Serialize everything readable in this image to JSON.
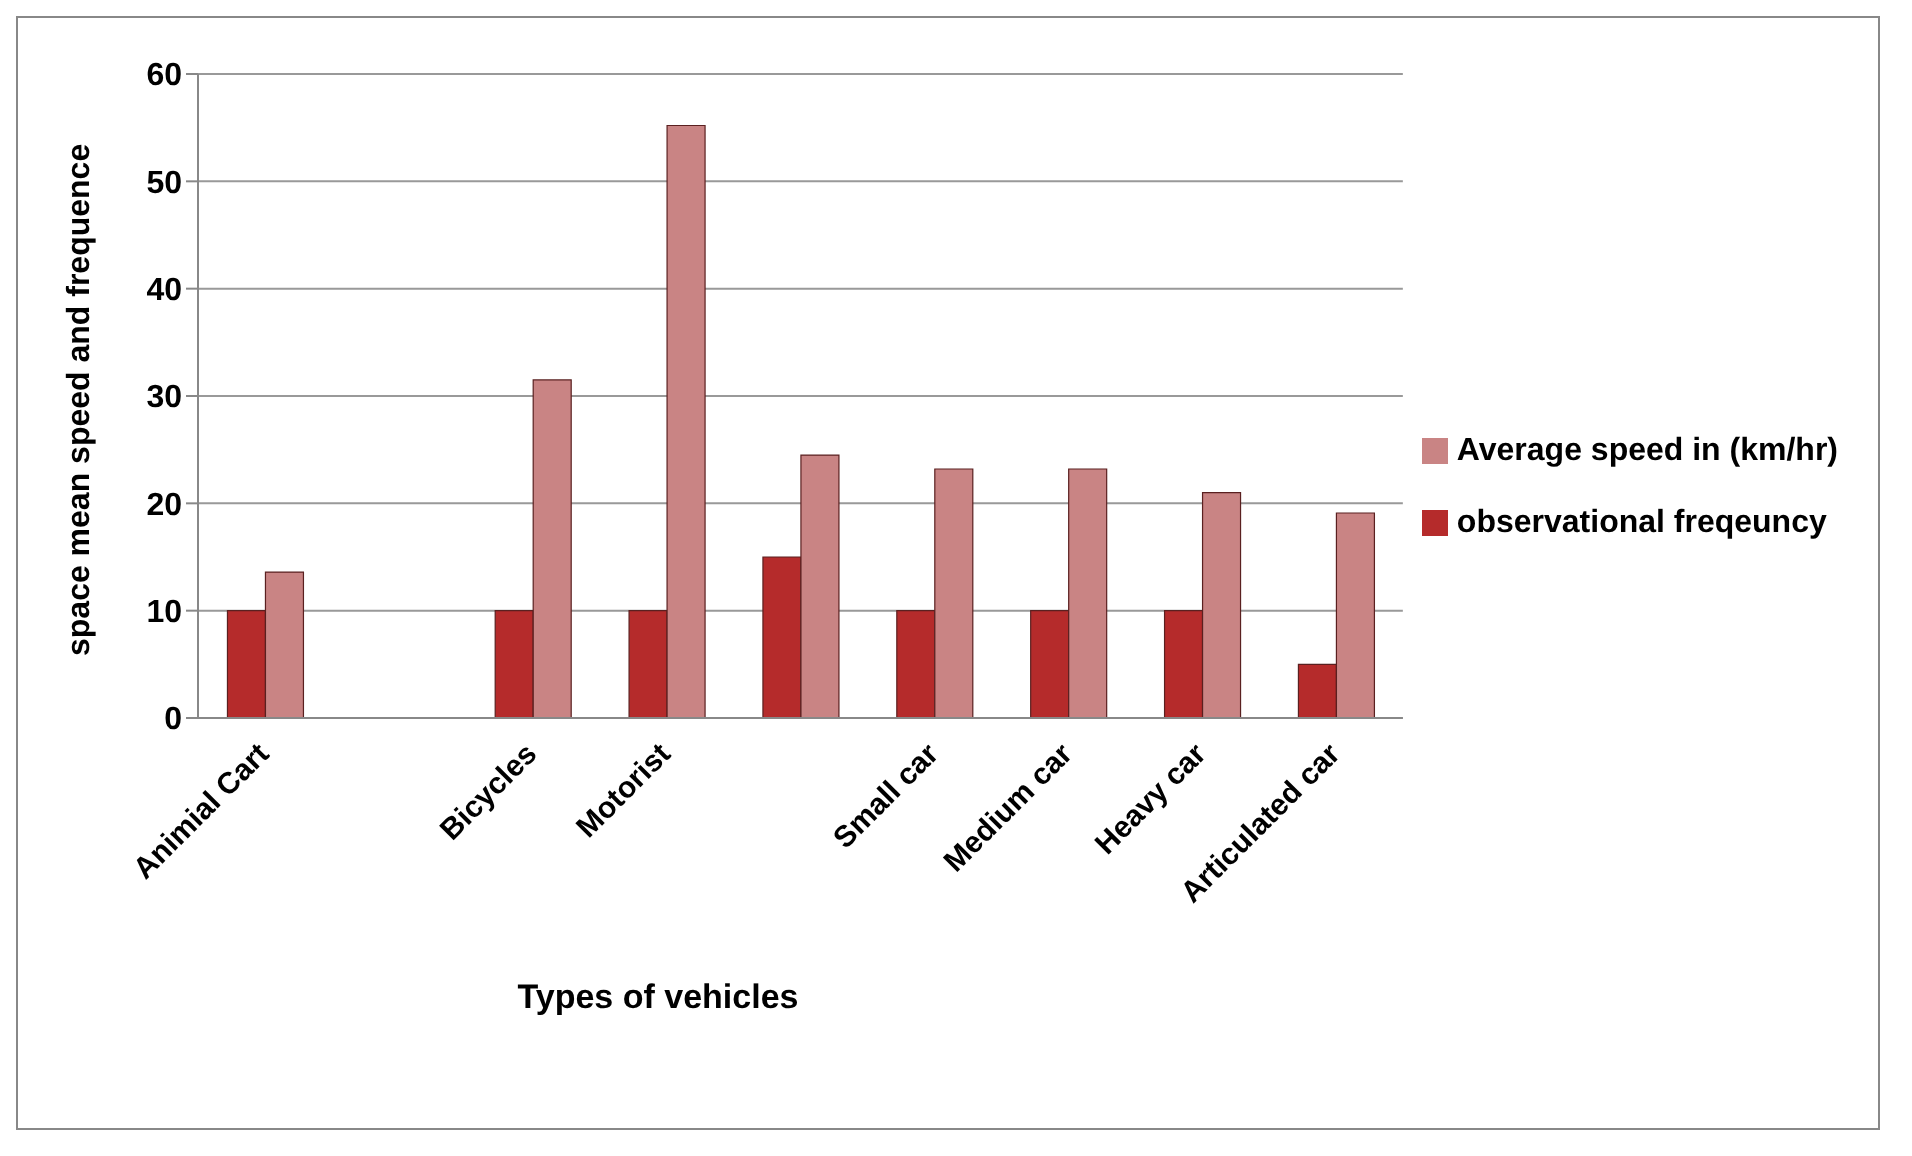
{
  "chart_data": {
    "type": "bar",
    "xlabel": "Types of vehicles",
    "ylabel": "space mean speed and frequence",
    "categories": [
      "Animial Cart",
      null,
      "Bicycles",
      "Motorist",
      null,
      "Small car",
      "Medium car",
      "Heavy car",
      "Articulated car"
    ],
    "series": [
      {
        "name": "observational freqeuncy",
        "color": "#b52b2b",
        "values": [
          10,
          null,
          10,
          10,
          15,
          10,
          10,
          10,
          5
        ]
      },
      {
        "name": "Average speed in (km/hr)",
        "color": "#c98484",
        "values": [
          13.6,
          null,
          31.5,
          55.2,
          24.5,
          23.2,
          23.2,
          21,
          19.1
        ]
      }
    ],
    "ylim": [
      0,
      60
    ],
    "yticks": [
      0,
      10,
      20,
      30,
      40,
      50,
      60
    ],
    "grid": "y",
    "legend": "right"
  }
}
